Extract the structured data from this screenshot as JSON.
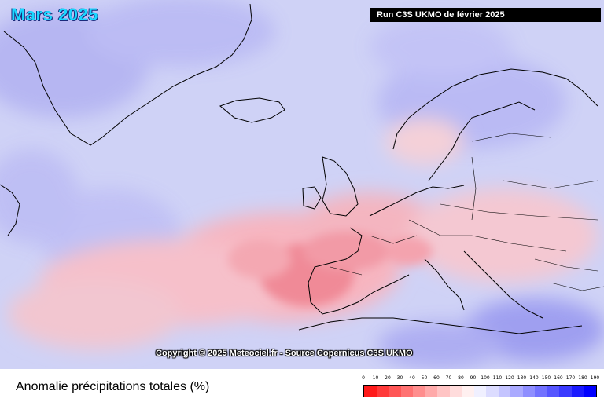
{
  "map": {
    "title": "Mars 2025",
    "run_label": "Run C3S UKMO de février 2025",
    "copyright": "Copyright © 2025 Meteociel.fr - Source Copernicus C3S UKMO"
  },
  "legend": {
    "title": "Anomalie précipitations totales (%)",
    "ticks": [
      "0",
      "10",
      "20",
      "30",
      "40",
      "50",
      "60",
      "70",
      "80",
      "90",
      "100",
      "110",
      "120",
      "130",
      "140",
      "150",
      "160",
      "170",
      "180",
      "190"
    ],
    "colors": [
      "#ff1a1a",
      "#ff3a3a",
      "#ff5656",
      "#ff7272",
      "#ff8e8e",
      "#ffaaaa",
      "#ffc4c4",
      "#ffdcdc",
      "#fff0f0",
      "#f0f0ff",
      "#dcdcff",
      "#c4c4ff",
      "#aaaaff",
      "#8e8eff",
      "#7272ff",
      "#5656ff",
      "#3a3aff",
      "#1a1aff",
      "#0000ff"
    ]
  }
}
